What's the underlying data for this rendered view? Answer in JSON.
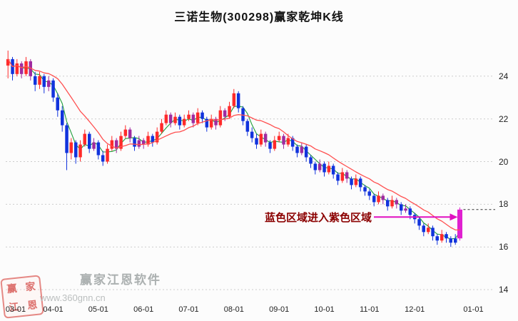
{
  "watermark": {
    "brand": "赢家江恩软件",
    "url": "www.360gnn.cn",
    "seal_chars": [
      "赢",
      "家",
      "江",
      "恩"
    ]
  },
  "chart_data": {
    "type": "candlestick",
    "title": "三诺生物(300298)赢家乾坤K线",
    "stock_name": "三诺生物",
    "stock_code": "300298",
    "grid": "horizontal-dotted",
    "y_axis": {
      "side": "right",
      "range": [
        13.5,
        26.3
      ],
      "ticks": [
        14,
        16,
        18,
        20,
        22,
        24
      ]
    },
    "x_axis": {
      "slots": 108,
      "ticks": [
        {
          "label": "03-01",
          "i": 0
        },
        {
          "label": "04-01",
          "i": 10
        },
        {
          "label": "05-01",
          "i": 20
        },
        {
          "label": "06-01",
          "i": 30
        },
        {
          "label": "07-01",
          "i": 40
        },
        {
          "label": "08-01",
          "i": 50
        },
        {
          "label": "09-01",
          "i": 60
        },
        {
          "label": "10-01",
          "i": 70
        },
        {
          "label": "11-01",
          "i": 80
        },
        {
          "label": "12-01",
          "i": 90
        },
        {
          "label": "01-01",
          "i": 103
        }
      ]
    },
    "annotation": {
      "text": "蓝色区域进入紫色区域",
      "points_to_price": 17.4,
      "text_color": "#8b0000",
      "arrow_color": "#e010c0"
    },
    "last_price_line": 17.75,
    "ma": [
      {
        "name": "slow",
        "period": 12,
        "color": "#ff5050"
      },
      {
        "name": "fast",
        "period": 4,
        "color": "#1f9d3a"
      }
    ],
    "candle_colors": {
      "r": "#ff2a2a",
      "b": "#1133dd",
      "p": "#a02ba0",
      "m": "#e020d0"
    },
    "candles": [
      [
        24.5,
        25.2,
        23.9,
        24.8,
        "r"
      ],
      [
        24.8,
        24.9,
        23.8,
        24.1,
        "b"
      ],
      [
        24.1,
        24.8,
        24.0,
        24.6,
        "r"
      ],
      [
        24.6,
        24.7,
        23.9,
        24.1,
        "p"
      ],
      [
        24.1,
        24.9,
        24.0,
        24.7,
        "r"
      ],
      [
        24.7,
        24.8,
        23.8,
        24.0,
        "p"
      ],
      [
        24.0,
        24.2,
        23.3,
        23.6,
        "b"
      ],
      [
        23.6,
        24.2,
        23.4,
        24.0,
        "r"
      ],
      [
        24.0,
        24.1,
        23.2,
        23.5,
        "b"
      ],
      [
        23.5,
        24.0,
        23.3,
        23.8,
        "p"
      ],
      [
        23.8,
        23.9,
        22.8,
        23.0,
        "b"
      ],
      [
        23.0,
        23.2,
        22.1,
        22.4,
        "b"
      ],
      [
        22.4,
        22.6,
        21.4,
        21.7,
        "b"
      ],
      [
        21.7,
        21.8,
        19.6,
        20.4,
        "b"
      ],
      [
        20.4,
        21.1,
        20.1,
        20.9,
        "r"
      ],
      [
        20.9,
        21.0,
        19.9,
        20.2,
        "b"
      ],
      [
        20.2,
        21.0,
        20.0,
        20.8,
        "r"
      ],
      [
        20.8,
        21.5,
        20.7,
        21.3,
        "r"
      ],
      [
        21.3,
        21.4,
        20.4,
        20.6,
        "b"
      ],
      [
        20.6,
        21.1,
        20.5,
        20.9,
        "p"
      ],
      [
        20.9,
        21.0,
        20.1,
        20.3,
        "b"
      ],
      [
        20.3,
        20.5,
        19.8,
        20.0,
        "b"
      ],
      [
        20.0,
        20.8,
        19.9,
        20.6,
        "r"
      ],
      [
        20.6,
        21.2,
        20.5,
        21.0,
        "r"
      ],
      [
        21.0,
        21.1,
        20.4,
        20.6,
        "p"
      ],
      [
        20.6,
        21.4,
        20.5,
        21.2,
        "r"
      ],
      [
        21.2,
        21.7,
        21.1,
        21.5,
        "r"
      ],
      [
        21.5,
        21.6,
        20.9,
        21.1,
        "p"
      ],
      [
        21.1,
        21.2,
        20.5,
        20.7,
        "b"
      ],
      [
        20.7,
        21.2,
        20.6,
        21.0,
        "p"
      ],
      [
        21.0,
        21.1,
        20.6,
        20.8,
        "p"
      ],
      [
        20.8,
        21.4,
        20.7,
        21.2,
        "r"
      ],
      [
        21.2,
        21.3,
        20.7,
        20.9,
        "b"
      ],
      [
        20.9,
        21.6,
        20.8,
        21.4,
        "r"
      ],
      [
        21.4,
        22.0,
        21.3,
        21.8,
        "r"
      ],
      [
        21.8,
        22.4,
        21.7,
        22.2,
        "r"
      ],
      [
        22.2,
        22.3,
        21.6,
        21.8,
        "p"
      ],
      [
        21.8,
        22.3,
        21.7,
        22.1,
        "r"
      ],
      [
        22.1,
        22.2,
        21.5,
        21.7,
        "b"
      ],
      [
        21.7,
        22.2,
        21.6,
        22.0,
        "r"
      ],
      [
        22.0,
        22.4,
        21.9,
        22.2,
        "r"
      ],
      [
        22.2,
        22.3,
        21.6,
        21.8,
        "p"
      ],
      [
        21.8,
        22.5,
        21.7,
        22.3,
        "r"
      ],
      [
        22.3,
        22.4,
        21.8,
        22.0,
        "b"
      ],
      [
        22.0,
        22.1,
        21.4,
        21.6,
        "b"
      ],
      [
        21.6,
        22.2,
        21.5,
        22.0,
        "r"
      ],
      [
        22.0,
        22.1,
        21.5,
        21.7,
        "p"
      ],
      [
        21.7,
        22.6,
        21.6,
        22.4,
        "r"
      ],
      [
        22.4,
        22.5,
        21.9,
        22.1,
        "p"
      ],
      [
        22.1,
        22.8,
        22.0,
        22.6,
        "r"
      ],
      [
        22.6,
        23.4,
        22.5,
        23.2,
        "r"
      ],
      [
        23.2,
        23.3,
        22.3,
        22.5,
        "b"
      ],
      [
        22.5,
        22.6,
        21.7,
        21.9,
        "b"
      ],
      [
        21.9,
        22.0,
        21.2,
        21.4,
        "b"
      ],
      [
        21.4,
        21.6,
        20.9,
        21.1,
        "b"
      ],
      [
        21.1,
        21.3,
        20.6,
        20.8,
        "b"
      ],
      [
        20.8,
        21.5,
        20.7,
        21.3,
        "r"
      ],
      [
        21.3,
        21.4,
        20.7,
        20.9,
        "p"
      ],
      [
        20.9,
        21.0,
        20.4,
        20.6,
        "b"
      ],
      [
        20.6,
        21.2,
        20.5,
        21.0,
        "r"
      ],
      [
        21.0,
        21.4,
        20.9,
        21.2,
        "r"
      ],
      [
        21.2,
        21.3,
        20.6,
        20.8,
        "p"
      ],
      [
        20.8,
        21.3,
        20.7,
        21.1,
        "r"
      ],
      [
        21.1,
        21.2,
        20.5,
        20.7,
        "b"
      ],
      [
        20.7,
        20.8,
        20.2,
        20.4,
        "b"
      ],
      [
        20.4,
        20.9,
        20.3,
        20.7,
        "p"
      ],
      [
        20.7,
        20.8,
        20.0,
        20.2,
        "b"
      ],
      [
        20.2,
        20.3,
        19.7,
        19.9,
        "b"
      ],
      [
        19.9,
        20.0,
        19.4,
        19.6,
        "b"
      ],
      [
        19.6,
        20.1,
        19.5,
        19.9,
        "p"
      ],
      [
        19.9,
        20.0,
        19.3,
        19.5,
        "b"
      ],
      [
        19.5,
        20.0,
        19.4,
        19.8,
        "r"
      ],
      [
        19.8,
        19.9,
        19.2,
        19.4,
        "b"
      ],
      [
        19.4,
        19.5,
        18.9,
        19.1,
        "b"
      ],
      [
        19.1,
        19.7,
        19.0,
        19.5,
        "r"
      ],
      [
        19.5,
        19.6,
        19.0,
        19.2,
        "p"
      ],
      [
        19.2,
        19.3,
        18.7,
        18.9,
        "b"
      ],
      [
        18.9,
        19.4,
        18.8,
        19.2,
        "r"
      ],
      [
        19.2,
        19.3,
        18.6,
        18.8,
        "b"
      ],
      [
        18.8,
        18.9,
        18.4,
        18.6,
        "b"
      ],
      [
        18.6,
        18.7,
        18.2,
        18.4,
        "b"
      ],
      [
        18.4,
        18.5,
        17.9,
        18.1,
        "b"
      ],
      [
        18.1,
        18.6,
        18.0,
        18.4,
        "r"
      ],
      [
        18.4,
        18.5,
        18.0,
        18.2,
        "p"
      ],
      [
        18.2,
        18.3,
        17.7,
        17.9,
        "b"
      ],
      [
        17.9,
        18.4,
        17.8,
        18.2,
        "r"
      ],
      [
        18.2,
        18.3,
        17.8,
        18.0,
        "p"
      ],
      [
        18.0,
        18.1,
        17.5,
        17.7,
        "b"
      ],
      [
        17.7,
        18.0,
        17.6,
        17.8,
        "p"
      ],
      [
        17.8,
        17.9,
        17.3,
        17.5,
        "b"
      ],
      [
        17.5,
        17.6,
        17.1,
        17.3,
        "b"
      ],
      [
        17.3,
        17.4,
        16.8,
        17.0,
        "b"
      ],
      [
        17.0,
        17.1,
        16.5,
        16.7,
        "b"
      ],
      [
        16.7,
        17.1,
        16.6,
        16.9,
        "r"
      ],
      [
        16.9,
        17.0,
        16.3,
        16.5,
        "b"
      ],
      [
        16.5,
        16.6,
        16.1,
        16.3,
        "b"
      ],
      [
        16.3,
        16.8,
        16.2,
        16.6,
        "r"
      ],
      [
        16.6,
        16.7,
        16.2,
        16.4,
        "b"
      ],
      [
        16.4,
        16.5,
        16.0,
        16.2,
        "b"
      ],
      [
        16.2,
        16.6,
        16.1,
        16.4,
        "b"
      ],
      [
        16.4,
        17.85,
        16.3,
        17.75,
        "m"
      ]
    ]
  }
}
